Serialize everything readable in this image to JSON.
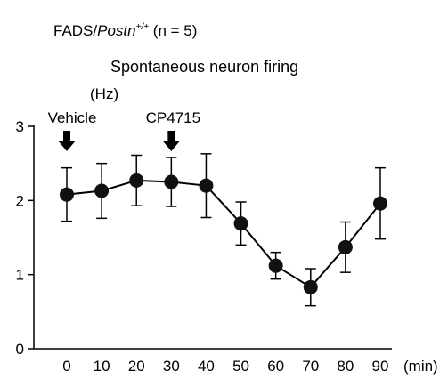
{
  "header": {
    "label_prefix": "FADS/",
    "label_gene": "Postn",
    "label_sup": "+/+",
    "label_n": " (n = 5)"
  },
  "chart_data": {
    "type": "line",
    "title": "Spontaneous neuron firing",
    "ylabel": "(Hz)",
    "xlabel": "(min)",
    "ylim": [
      0,
      3
    ],
    "xlim": [
      0,
      90
    ],
    "yticks": [
      0,
      1,
      2,
      3
    ],
    "xticks": [
      0,
      10,
      20,
      30,
      40,
      50,
      60,
      70,
      80,
      90
    ],
    "series": [
      {
        "x": [
          0,
          10,
          20,
          30,
          40,
          50,
          60,
          70,
          80,
          90
        ],
        "values": [
          2.08,
          2.13,
          2.27,
          2.25,
          2.2,
          1.69,
          1.12,
          0.83,
          1.37,
          1.96
        ],
        "error": [
          0.36,
          0.37,
          0.34,
          0.33,
          0.43,
          0.29,
          0.18,
          0.25,
          0.34,
          0.48
        ]
      }
    ],
    "annotations": [
      {
        "label": "Vehicle",
        "x": 0
      },
      {
        "label": "CP4715",
        "x": 30
      }
    ],
    "marker_color": "#111111",
    "line_color": "#000000"
  }
}
